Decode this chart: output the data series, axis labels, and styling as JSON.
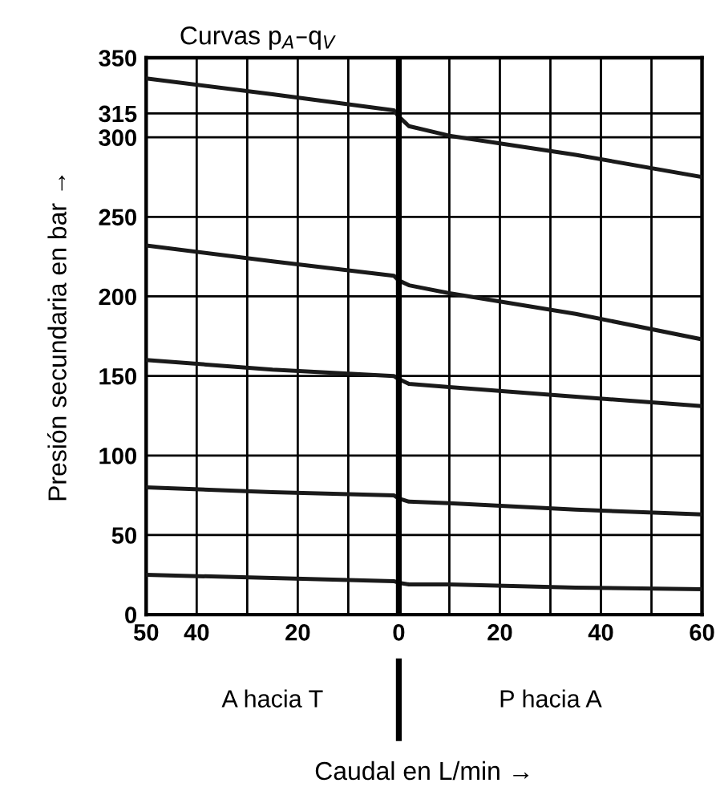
{
  "chart_data": {
    "type": "line",
    "title": "Curvas p$_{A}$–q$_{V}$",
    "xlabel": "Caudal en L/min →",
    "ylabel": "Presión secundaria en bar →",
    "x": [
      -50,
      -25,
      -1,
      0,
      2,
      10,
      35,
      60
    ],
    "series": [
      {
        "color": "#1a1a1a",
        "values": [
          337,
          327,
          317,
          313,
          307,
          301,
          289,
          275
        ]
      },
      {
        "color": "#1a1a1a",
        "values": [
          232,
          222,
          213,
          210,
          207,
          202,
          189,
          173
        ]
      },
      {
        "color": "#1a1a1a",
        "values": [
          160,
          154,
          150,
          148,
          145,
          143,
          137,
          131
        ]
      },
      {
        "color": "#1a1a1a",
        "values": [
          80,
          77,
          75,
          73,
          71,
          70,
          66,
          63
        ]
      },
      {
        "color": "#1a1a1a",
        "values": [
          25,
          23,
          21,
          20,
          19,
          19,
          17,
          16
        ]
      }
    ],
    "xlim": [
      -50,
      60
    ],
    "xticks": [
      {
        "value": -50,
        "label": "50"
      },
      {
        "value": -40,
        "label": "40"
      },
      {
        "value": -20,
        "label": "20"
      },
      0,
      20,
      40,
      60
    ],
    "ylim": [
      0,
      350
    ],
    "yticks": [
      0,
      50,
      100,
      150,
      200,
      250,
      300,
      315,
      350
    ],
    "grid": true,
    "marker": "none",
    "line_style": "solid",
    "ref_lines": [
      {
        "axis": "x",
        "value": 0,
        "color": "#000000"
      }
    ],
    "annotations": [
      "A hacia T",
      "P hacia A"
    ]
  }
}
